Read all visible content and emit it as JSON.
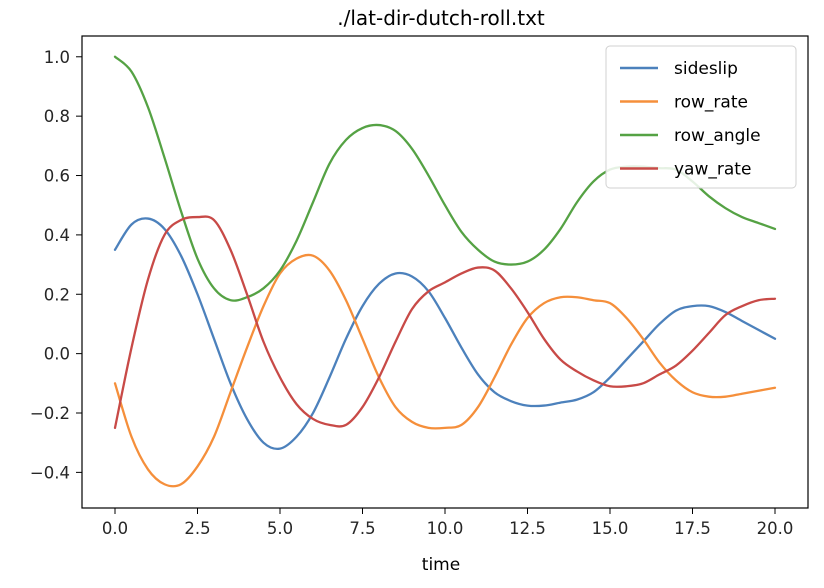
{
  "chart_data": {
    "type": "line",
    "title": "./lat-dir-dutch-roll.txt",
    "xlabel": "time",
    "ylabel": "",
    "xlim": [
      -1.0,
      21.0
    ],
    "ylim": [
      -0.52,
      1.07
    ],
    "xticks": [
      "0.0",
      "2.5",
      "5.0",
      "7.5",
      "10.0",
      "12.5",
      "15.0",
      "17.5",
      "20.0"
    ],
    "yticks": [
      "-0.4",
      "-0.2",
      "0.0",
      "0.2",
      "0.4",
      "0.6",
      "0.8",
      "1.0"
    ],
    "grid": false,
    "legend_position": "top-right",
    "x": [
      0,
      0.5,
      1,
      1.5,
      2,
      2.5,
      3,
      3.5,
      4,
      4.5,
      5,
      5.5,
      6,
      6.5,
      7,
      7.5,
      8,
      8.5,
      9,
      9.5,
      10,
      10.5,
      11,
      11.5,
      12,
      12.5,
      13,
      13.5,
      14,
      14.5,
      15,
      15.5,
      16,
      16.5,
      17,
      17.5,
      18,
      18.5,
      19,
      19.5,
      20
    ],
    "series": [
      {
        "name": "sideslip",
        "color": "#4c81bc",
        "values": [
          0.35,
          0.435,
          0.455,
          0.42,
          0.33,
          0.2,
          0.05,
          -0.1,
          -0.22,
          -0.3,
          -0.32,
          -0.28,
          -0.2,
          -0.08,
          0.05,
          0.16,
          0.235,
          0.27,
          0.26,
          0.21,
          0.12,
          0.02,
          -0.07,
          -0.13,
          -0.16,
          -0.175,
          -0.175,
          -0.165,
          -0.155,
          -0.13,
          -0.08,
          -0.02,
          0.04,
          0.1,
          0.145,
          0.16,
          0.16,
          0.14,
          0.11,
          0.08,
          0.05
        ]
      },
      {
        "name": "row_rate",
        "color": "#f58f3b",
        "values": [
          -0.1,
          -0.28,
          -0.39,
          -0.44,
          -0.44,
          -0.38,
          -0.28,
          -0.13,
          0.02,
          0.16,
          0.27,
          0.32,
          0.33,
          0.28,
          0.18,
          0.05,
          -0.08,
          -0.18,
          -0.23,
          -0.25,
          -0.25,
          -0.24,
          -0.18,
          -0.08,
          0.03,
          0.12,
          0.17,
          0.19,
          0.19,
          0.18,
          0.17,
          0.12,
          0.05,
          -0.03,
          -0.09,
          -0.13,
          -0.145,
          -0.145,
          -0.135,
          -0.125,
          -0.115
        ]
      },
      {
        "name": "row_angle",
        "color": "#55a244",
        "values": [
          1.0,
          0.95,
          0.83,
          0.66,
          0.48,
          0.32,
          0.22,
          0.18,
          0.19,
          0.22,
          0.28,
          0.38,
          0.51,
          0.64,
          0.72,
          0.76,
          0.77,
          0.75,
          0.69,
          0.6,
          0.5,
          0.41,
          0.35,
          0.31,
          0.3,
          0.31,
          0.35,
          0.42,
          0.51,
          0.58,
          0.62,
          0.63,
          0.63,
          0.625,
          0.62,
          0.58,
          0.53,
          0.49,
          0.46,
          0.44,
          0.42
        ]
      },
      {
        "name": "yaw_rate",
        "color": "#c84a47",
        "values": [
          -0.25,
          0.02,
          0.25,
          0.4,
          0.45,
          0.46,
          0.45,
          0.35,
          0.2,
          0.04,
          -0.08,
          -0.17,
          -0.22,
          -0.24,
          -0.24,
          -0.18,
          -0.08,
          0.04,
          0.15,
          0.21,
          0.24,
          0.27,
          0.29,
          0.28,
          0.22,
          0.14,
          0.05,
          -0.02,
          -0.06,
          -0.09,
          -0.11,
          -0.11,
          -0.1,
          -0.07,
          -0.04,
          0.01,
          0.07,
          0.13,
          0.16,
          0.18,
          0.185
        ]
      }
    ]
  }
}
